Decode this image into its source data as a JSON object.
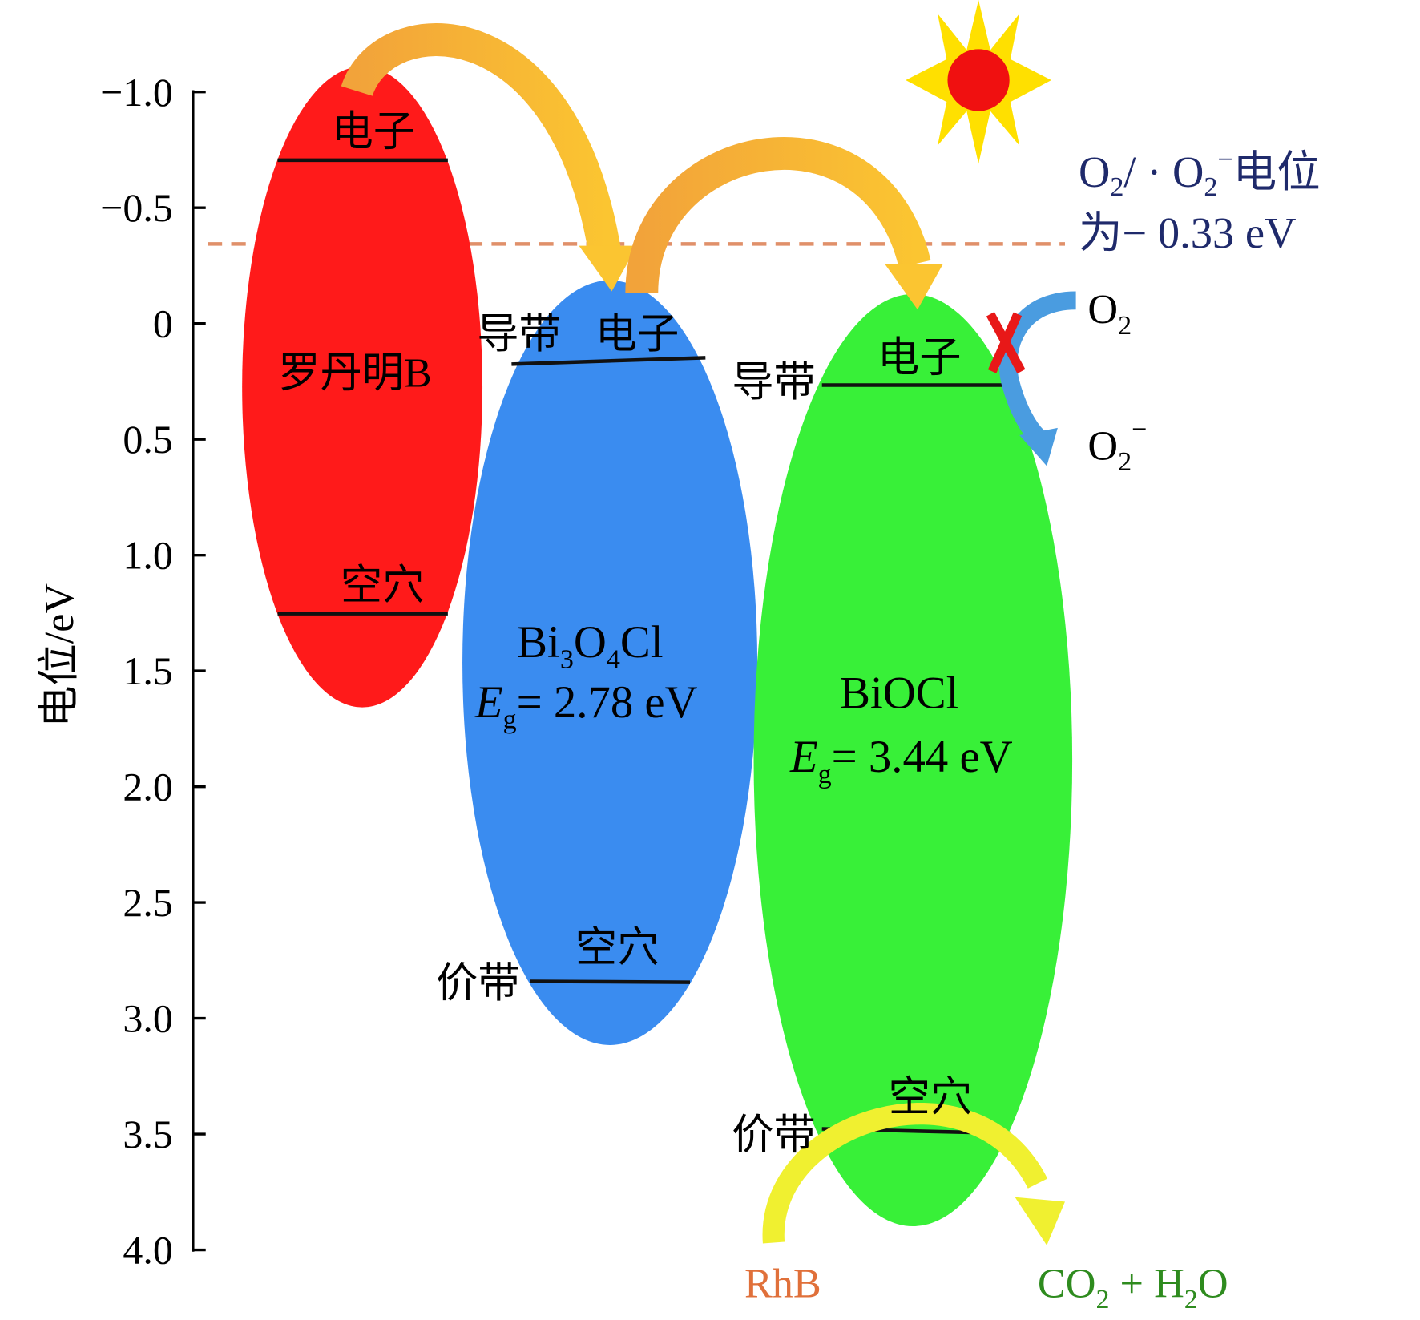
{
  "axis": {
    "label": "电位/eV",
    "ticks": [
      {
        "value": -1,
        "label": "−1.0"
      },
      {
        "value": -0.5,
        "label": "−0.5"
      },
      0,
      {
        "value": 0.5,
        "label": "0.5"
      },
      {
        "value": 1,
        "label": "1.0"
      },
      {
        "value": 1.5,
        "label": "1.5"
      },
      {
        "value": 2,
        "label": "2.0"
      },
      {
        "value": 2.5,
        "label": "2.5"
      },
      {
        "value": 3,
        "label": "3.0"
      },
      {
        "value": 3.5,
        "label": "3.5"
      },
      {
        "value": 4,
        "label": "4.0"
      }
    ]
  },
  "rhodamine": {
    "name": "罗丹明B",
    "electron": "电子",
    "hole": "空穴"
  },
  "bi3o4cl": {
    "formula": [
      "Bi",
      "3",
      "O",
      "4",
      "Cl"
    ],
    "band_gap": [
      "E",
      "g",
      "= 2.78 eV"
    ],
    "conduction_band": "导带",
    "electron": "电子",
    "valence_band": "价带",
    "hole": "空穴"
  },
  "biocl": {
    "formula": "BiOCl",
    "band_gap": [
      "E",
      "g",
      "= 3.44 eV"
    ],
    "conduction_band": "导带",
    "electron": "电子",
    "valence_band": "价带",
    "hole": "空穴"
  },
  "potential_note": {
    "line1": [
      "O",
      "2",
      "/ · O",
      "2",
      "−",
      "电位"
    ],
    "line2": "为− 0.33 eV"
  },
  "oxygen": [
    "O",
    "2"
  ],
  "superoxide": [
    "O",
    "2",
    "−"
  ],
  "degradation": {
    "reactant": "RhB",
    "product": [
      "CO",
      "2",
      " + H",
      "2",
      "O"
    ]
  }
}
